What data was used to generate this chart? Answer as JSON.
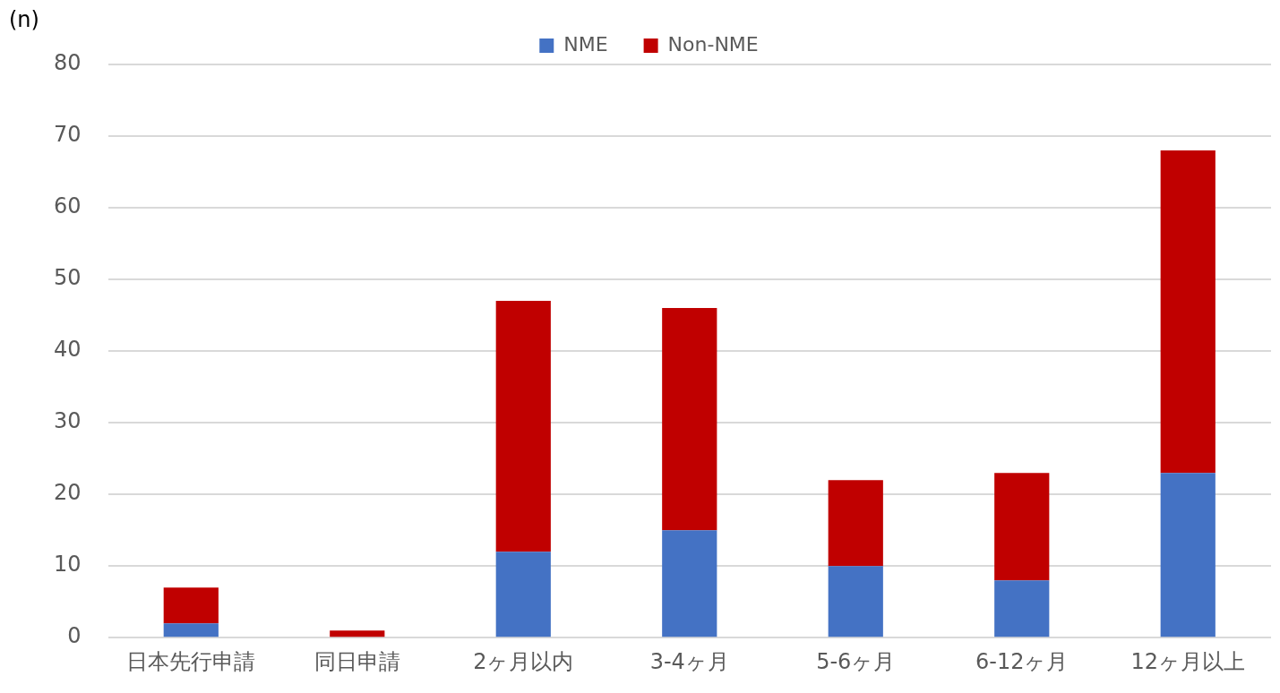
{
  "chart_data": {
    "type": "bar",
    "ylabel": "(n)",
    "categories": [
      "日本先行申請",
      "同日申請",
      "2ヶ月以内",
      "3-4ヶ月",
      "5-6ヶ月",
      "6-12ヶ月",
      "12ヶ月以上"
    ],
    "series": [
      {
        "name": "NME",
        "color": "#4472c4",
        "values": [
          2,
          0,
          12,
          15,
          10,
          8,
          23
        ]
      },
      {
        "name": "Non-NME",
        "color": "#c00000",
        "values": [
          5,
          1,
          35,
          31,
          12,
          15,
          45
        ]
      }
    ],
    "stacked": true,
    "ylim": [
      0,
      80
    ],
    "yticks": [
      0,
      10,
      20,
      30,
      40,
      50,
      60,
      70,
      80
    ],
    "grid": "y",
    "legend": "top"
  }
}
